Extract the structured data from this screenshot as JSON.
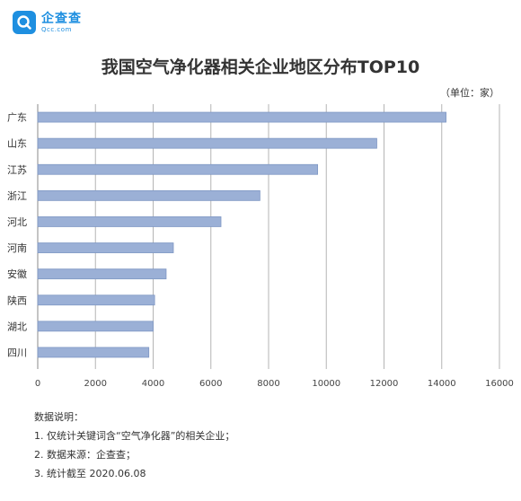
{
  "logo": {
    "name": "企查查",
    "sub": "Qcc.com"
  },
  "unit_label": "（单位：家）",
  "notes": {
    "heading": "数据说明：",
    "lines": [
      "1. 仅统计关键词含“空气净化器”的相关企业；",
      "2. 数据来源：企查查；",
      "3. 统计截至 2020.06.08"
    ]
  },
  "chart_data": {
    "type": "bar",
    "orientation": "horizontal",
    "title": "我国空气净化器相关企业地区分布TOP10",
    "categories": [
      "广东",
      "山东",
      "江苏",
      "浙江",
      "河北",
      "河南",
      "安徽",
      "陕西",
      "湖北",
      "四川"
    ],
    "values": [
      14150,
      11750,
      9700,
      7700,
      6350,
      4700,
      4450,
      4050,
      4000,
      3850
    ],
    "xlim": [
      0,
      16000
    ],
    "xticks": [
      0,
      2000,
      4000,
      6000,
      8000,
      10000,
      12000,
      14000,
      16000
    ],
    "grid": true,
    "legend": "none",
    "colors": {
      "bar": "#9bb0d6",
      "bar_edge": "#7f97c4",
      "grid": "#b5b5b5",
      "axis": "#888888"
    }
  }
}
